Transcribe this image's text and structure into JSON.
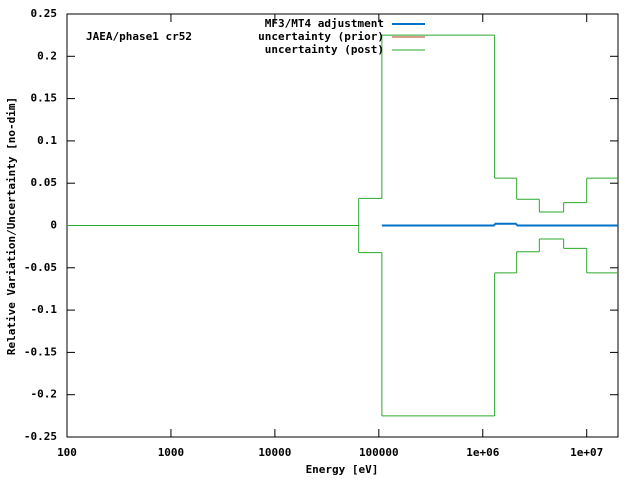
{
  "chart_data": {
    "type": "step",
    "annotation": "JAEA/phase1 cr52",
    "x_label": "Energy [eV]",
    "y_label": "Relative Variation/Uncertainty [no-dim]",
    "xscale": "log",
    "xlim": [
      100,
      20000000
    ],
    "ylim": [
      -0.25,
      0.25
    ],
    "xticks": [
      100,
      1000,
      10000,
      100000,
      {
        "value": 1000000,
        "label": "1e+06"
      },
      {
        "value": 10000000,
        "label": "1e+07"
      }
    ],
    "yticks": [
      0.25,
      0.2,
      0.15,
      0.1,
      0.05,
      0,
      -0.05,
      -0.1,
      -0.15,
      -0.2,
      -0.25
    ],
    "legend": "top-right",
    "series": [
      {
        "name": "MF3/MT4 adjustment",
        "color": "#0070c8",
        "bins": [
          107000,
          1300000,
          2120000,
          20000000
        ],
        "values": [
          0,
          0.002,
          0
        ]
      },
      {
        "name": "uncertainty (prior)",
        "color": "#b03c1c"
      },
      {
        "name": "uncertainty (post)",
        "color": "#2aa82a",
        "bins": [
          100,
          64000,
          107000,
          1300000,
          2120000,
          3500000,
          6000000,
          10000000,
          20000000
        ],
        "values": [
          0,
          0.032,
          0.225,
          0.056,
          0.031,
          0.016,
          0.027,
          0.056
        ],
        "lower": [
          0,
          -0.032,
          -0.225,
          -0.056,
          -0.031,
          -0.016,
          -0.027,
          -0.056
        ]
      }
    ]
  }
}
